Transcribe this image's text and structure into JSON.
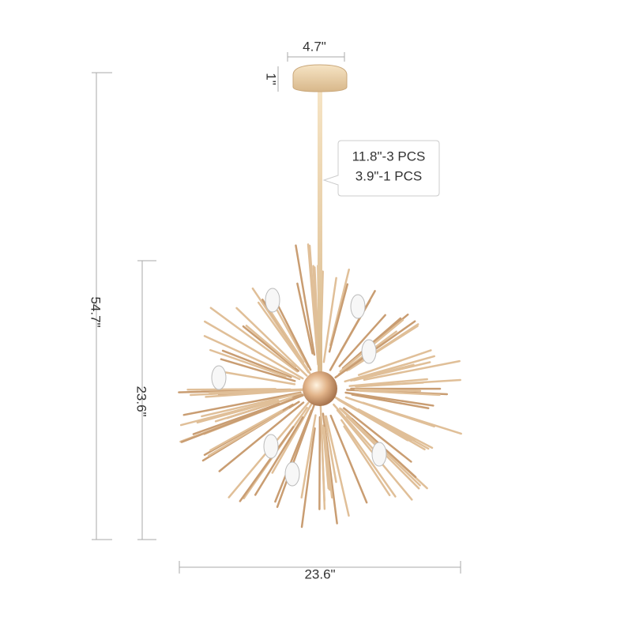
{
  "dimensions": {
    "canopy_width": "4.7\"",
    "canopy_height": "1\"",
    "rod_note": [
      "11.8\"-3 PCS",
      "3.9\"-1 PCS"
    ],
    "total_height": "54.7\"",
    "sphere_height": "23.6\"",
    "sphere_width": "23.6\""
  }
}
